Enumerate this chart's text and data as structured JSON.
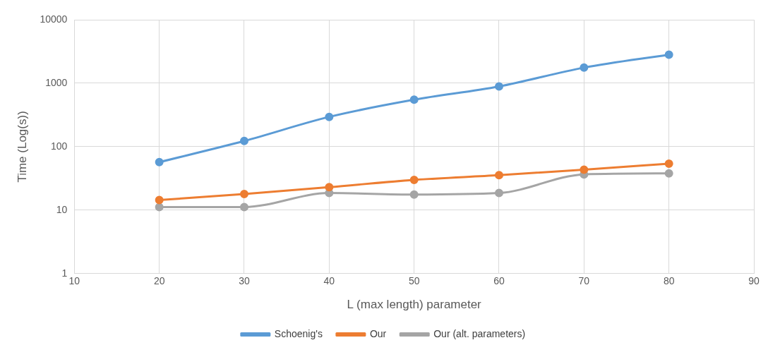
{
  "chart_data": {
    "type": "line",
    "xlabel": "L (max length) parameter",
    "ylabel": "Time (Log(s))",
    "x": [
      20,
      30,
      40,
      50,
      60,
      70,
      80
    ],
    "series": [
      {
        "name": "Schoenig's",
        "color": "#5b9bd5",
        "values": [
          57,
          123,
          295,
          550,
          890,
          1760,
          2820
        ]
      },
      {
        "name": "Our",
        "color": "#ed7d31",
        "values": [
          14.4,
          18,
          23,
          30,
          35.6,
          43.5,
          54
        ]
      },
      {
        "name": "Our (alt. parameters)",
        "color": "#a5a5a5",
        "values": [
          11.2,
          11.2,
          18.6,
          17.6,
          18.6,
          36.6,
          38
        ]
      }
    ],
    "xlim": [
      10,
      90
    ],
    "xticks": [
      10,
      20,
      30,
      40,
      50,
      60,
      70,
      80,
      90
    ],
    "ylim": [
      1,
      10000
    ],
    "yticks": [
      1,
      10,
      100,
      1000,
      10000
    ],
    "log": "y",
    "grid": true,
    "legend": "bottom",
    "marker": "circle",
    "line_style": "solid"
  }
}
